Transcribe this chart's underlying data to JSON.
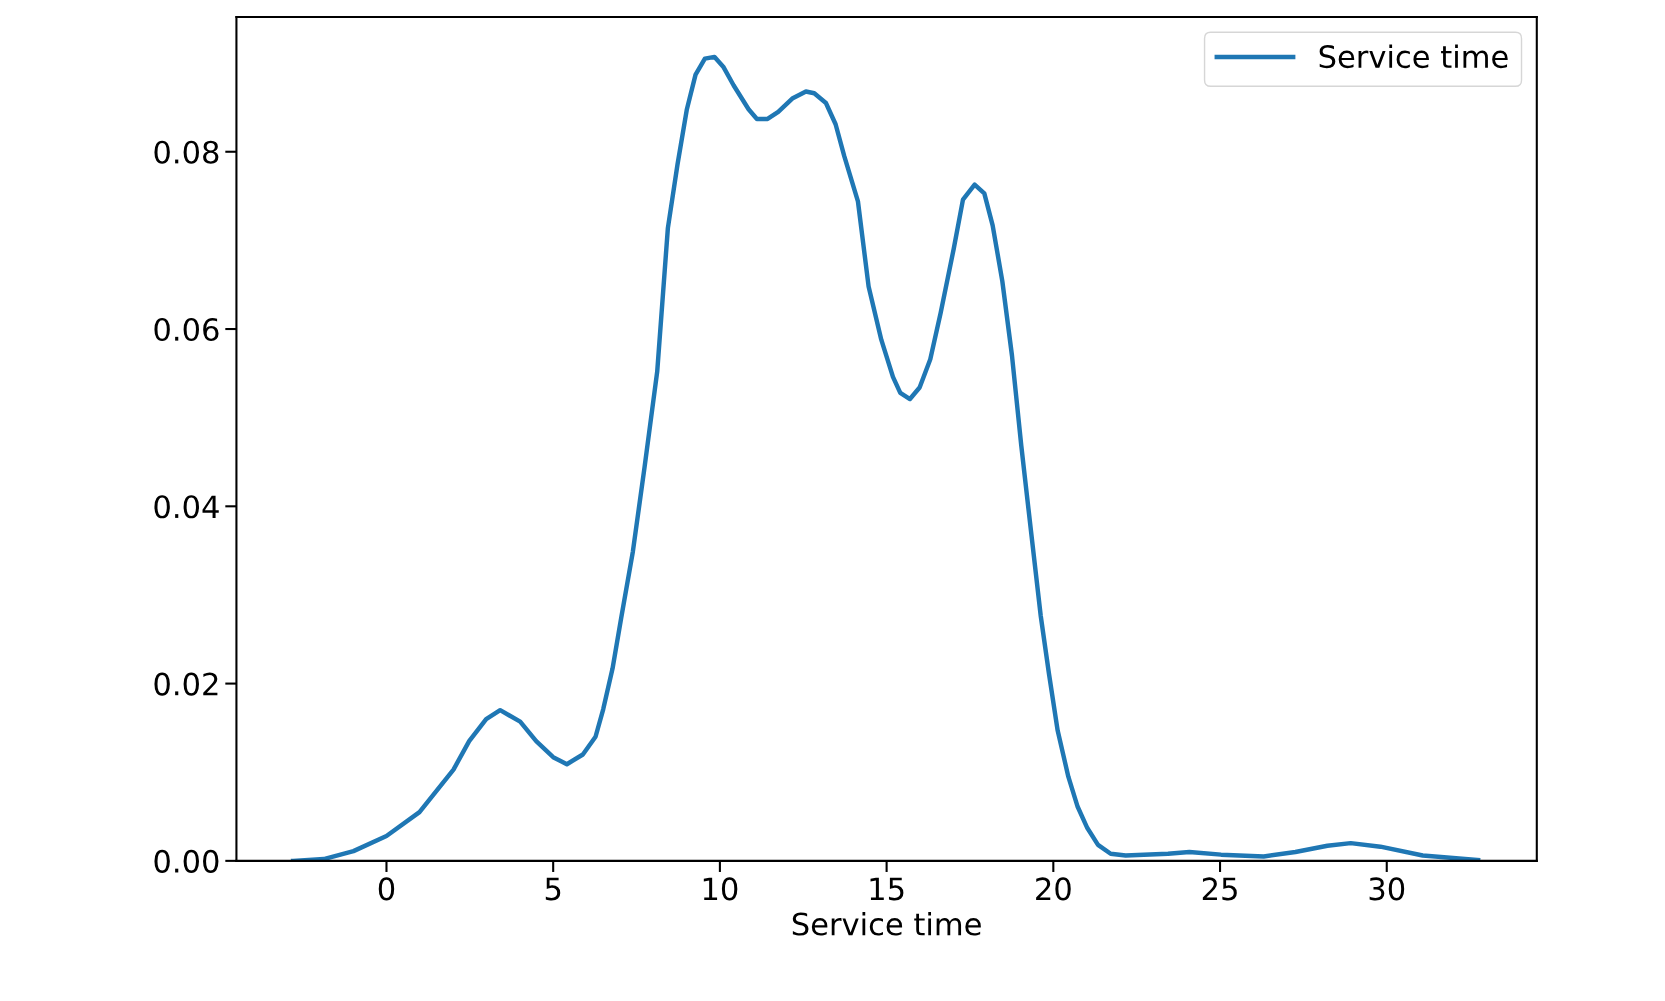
{
  "chart_data": {
    "type": "line",
    "xlabel": "Service time",
    "xlim": [
      -4.5,
      34.5
    ],
    "ylim": [
      0,
      0.0952
    ],
    "xticks": [
      0,
      5,
      10,
      15,
      20,
      25,
      30
    ],
    "yticks": [
      {
        "value": 0,
        "label": "0.00"
      },
      {
        "value": 0.02,
        "label": "0.02"
      },
      {
        "value": 0.04,
        "label": "0.04"
      },
      {
        "value": 0.06,
        "label": "0.06"
      },
      {
        "value": 0.08,
        "label": "0.08"
      }
    ],
    "grid": false,
    "legend": "top right",
    "marker": "none",
    "line_style": "solid",
    "series": [
      {
        "name": "Service time",
        "color": "#1f77b4",
        "x": [
          -2.8,
          -1.88,
          -0.99,
          0,
          0.99,
          2.01,
          2.48,
          2.99,
          3.41,
          4.01,
          4.49,
          5.0,
          5.41,
          5.89,
          6.27,
          6.5,
          6.78,
          7.04,
          7.39,
          7.74,
          8.12,
          8.44,
          8.73,
          9.01,
          9.27,
          9.55,
          9.84,
          10.1,
          10.41,
          10.86,
          11.11,
          11.43,
          11.75,
          12.17,
          12.58,
          12.83,
          13.18,
          13.47,
          13.73,
          14.14,
          14.46,
          14.84,
          15.19,
          15.41,
          15.7,
          15.99,
          16.31,
          16.62,
          17.01,
          17.29,
          17.64,
          17.93,
          18.18,
          18.47,
          18.76,
          19.04,
          19.33,
          19.62,
          19.87,
          20.13,
          20.45,
          20.73,
          21.02,
          21.34,
          21.72,
          22.17,
          23.44,
          24.08,
          25.03,
          26.31,
          27.26,
          28.22,
          28.92,
          29.81,
          31.08,
          32.74
        ],
        "values": [
          0,
          0.0002,
          0.0011,
          0.0028,
          0.0055,
          0.0103,
          0.0135,
          0.016,
          0.017,
          0.0157,
          0.0135,
          0.0117,
          0.0109,
          0.012,
          0.014,
          0.0171,
          0.0217,
          0.0274,
          0.0349,
          0.0444,
          0.0552,
          0.0714,
          0.0786,
          0.0848,
          0.0887,
          0.0905,
          0.0907,
          0.0896,
          0.0875,
          0.0848,
          0.0837,
          0.0837,
          0.0845,
          0.086,
          0.0868,
          0.0866,
          0.0855,
          0.0831,
          0.0795,
          0.0744,
          0.0648,
          0.0588,
          0.0546,
          0.0528,
          0.0521,
          0.0534,
          0.0566,
          0.0618,
          0.069,
          0.0746,
          0.0763,
          0.0753,
          0.0717,
          0.0654,
          0.057,
          0.0468,
          0.0372,
          0.0277,
          0.0211,
          0.0147,
          0.0095,
          0.0061,
          0.0037,
          0.0018,
          0.0008,
          0.0006,
          0.0008,
          0.001,
          0.0007,
          0.0005,
          0.001,
          0.0017,
          0.002,
          0.0016,
          0.0006,
          0.0001
        ]
      }
    ]
  }
}
